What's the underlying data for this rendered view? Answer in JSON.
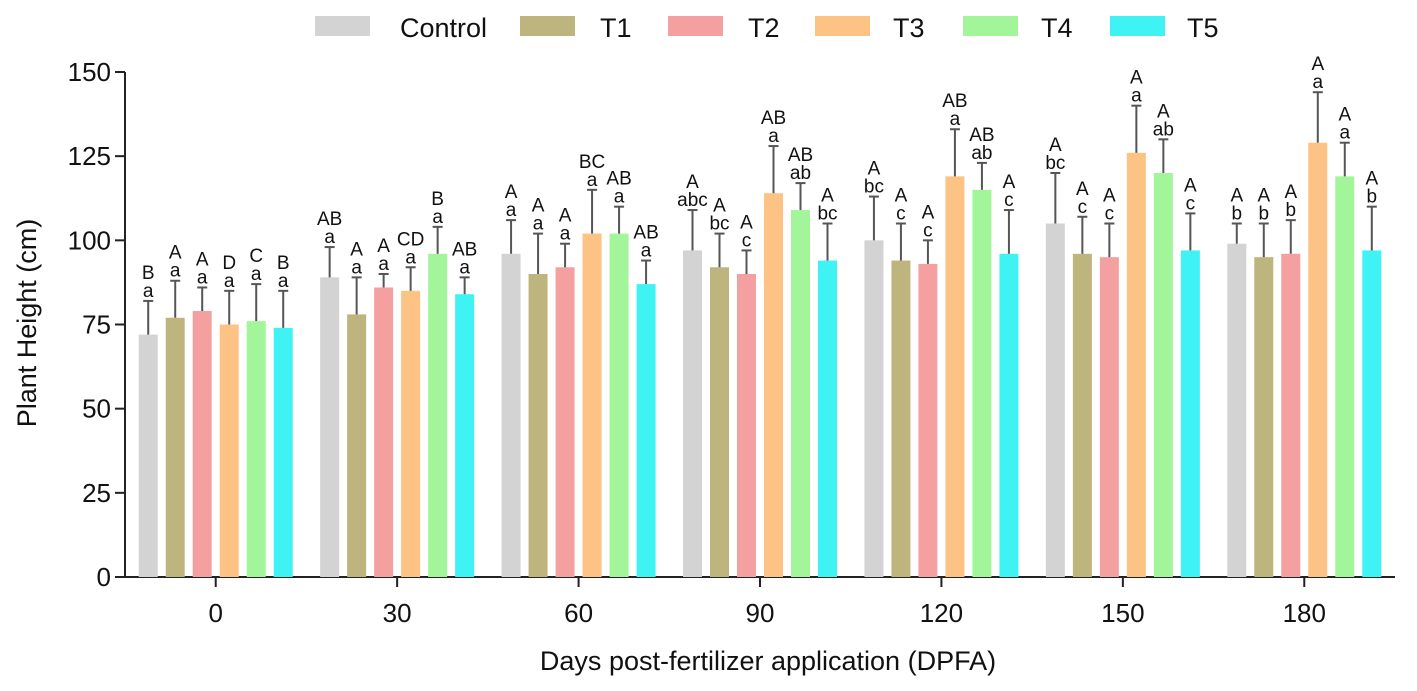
{
  "chart_data": {
    "type": "bar",
    "title": "",
    "xlabel": "Days post-fertilizer application (DPFA)",
    "ylabel": "Plant Height (cm)",
    "ylim": [
      0,
      150
    ],
    "yticks": [
      "0",
      "25",
      "50",
      "75",
      "100",
      "125",
      "150"
    ],
    "categories": [
      "0",
      "30",
      "60",
      "90",
      "120",
      "150",
      "180"
    ],
    "legend_position": "top",
    "series": [
      {
        "name": "Control",
        "color": "#d3d3d3",
        "values": [
          72,
          89,
          96,
          97,
          100,
          105,
          99
        ],
        "errors": [
          10,
          9,
          10,
          12,
          13,
          15,
          6
        ],
        "upper_letters": [
          "B",
          "AB",
          "A",
          "A",
          "A",
          "A",
          "A"
        ],
        "lower_letters": [
          "a",
          "a",
          "a",
          "abc",
          "bc",
          "bc",
          "b"
        ]
      },
      {
        "name": "T1",
        "color": "#bdb47e",
        "values": [
          77,
          78,
          90,
          92,
          94,
          96,
          95
        ],
        "errors": [
          11,
          11,
          12,
          10,
          11,
          11,
          10
        ],
        "upper_letters": [
          "A",
          "A",
          "A",
          "A",
          "A",
          "A",
          "A"
        ],
        "lower_letters": [
          "a",
          "a",
          "a",
          "bc",
          "c",
          "c",
          "b"
        ]
      },
      {
        "name": "T2",
        "color": "#f4a0a0",
        "values": [
          79,
          86,
          92,
          90,
          93,
          95,
          96
        ],
        "errors": [
          7,
          4,
          7,
          7,
          7,
          10,
          10
        ],
        "upper_letters": [
          "A",
          "A",
          "A",
          "A",
          "A",
          "A",
          "A"
        ],
        "lower_letters": [
          "a",
          "a",
          "a",
          "c",
          "c",
          "c",
          "b"
        ]
      },
      {
        "name": "T3",
        "color": "#fcc385",
        "values": [
          75,
          85,
          102,
          114,
          119,
          126,
          129
        ],
        "errors": [
          10,
          7,
          13,
          14,
          14,
          14,
          15
        ],
        "upper_letters": [
          "D",
          "CD",
          "BC",
          "AB",
          "AB",
          "A",
          "A"
        ],
        "lower_letters": [
          "a",
          "a",
          "a",
          "a",
          "a",
          "a",
          "a"
        ]
      },
      {
        "name": "T4",
        "color": "#a3f59a",
        "values": [
          76,
          96,
          102,
          109,
          115,
          120,
          119
        ],
        "errors": [
          11,
          8,
          8,
          8,
          8,
          10,
          10
        ],
        "upper_letters": [
          "C",
          "B",
          "AB",
          "AB",
          "AB",
          "A",
          "A"
        ],
        "lower_letters": [
          "a",
          "a",
          "a",
          "ab",
          "ab",
          "ab",
          "a"
        ]
      },
      {
        "name": "T5",
        "color": "#3ff3f5",
        "values": [
          74,
          84,
          87,
          94,
          96,
          97,
          97
        ],
        "errors": [
          11,
          5,
          7,
          11,
          13,
          11,
          13
        ],
        "upper_letters": [
          "B",
          "AB",
          "AB",
          "A",
          "A",
          "A",
          "A"
        ],
        "lower_letters": [
          "a",
          "a",
          "a",
          "bc",
          "c",
          "c",
          "b"
        ]
      }
    ]
  }
}
